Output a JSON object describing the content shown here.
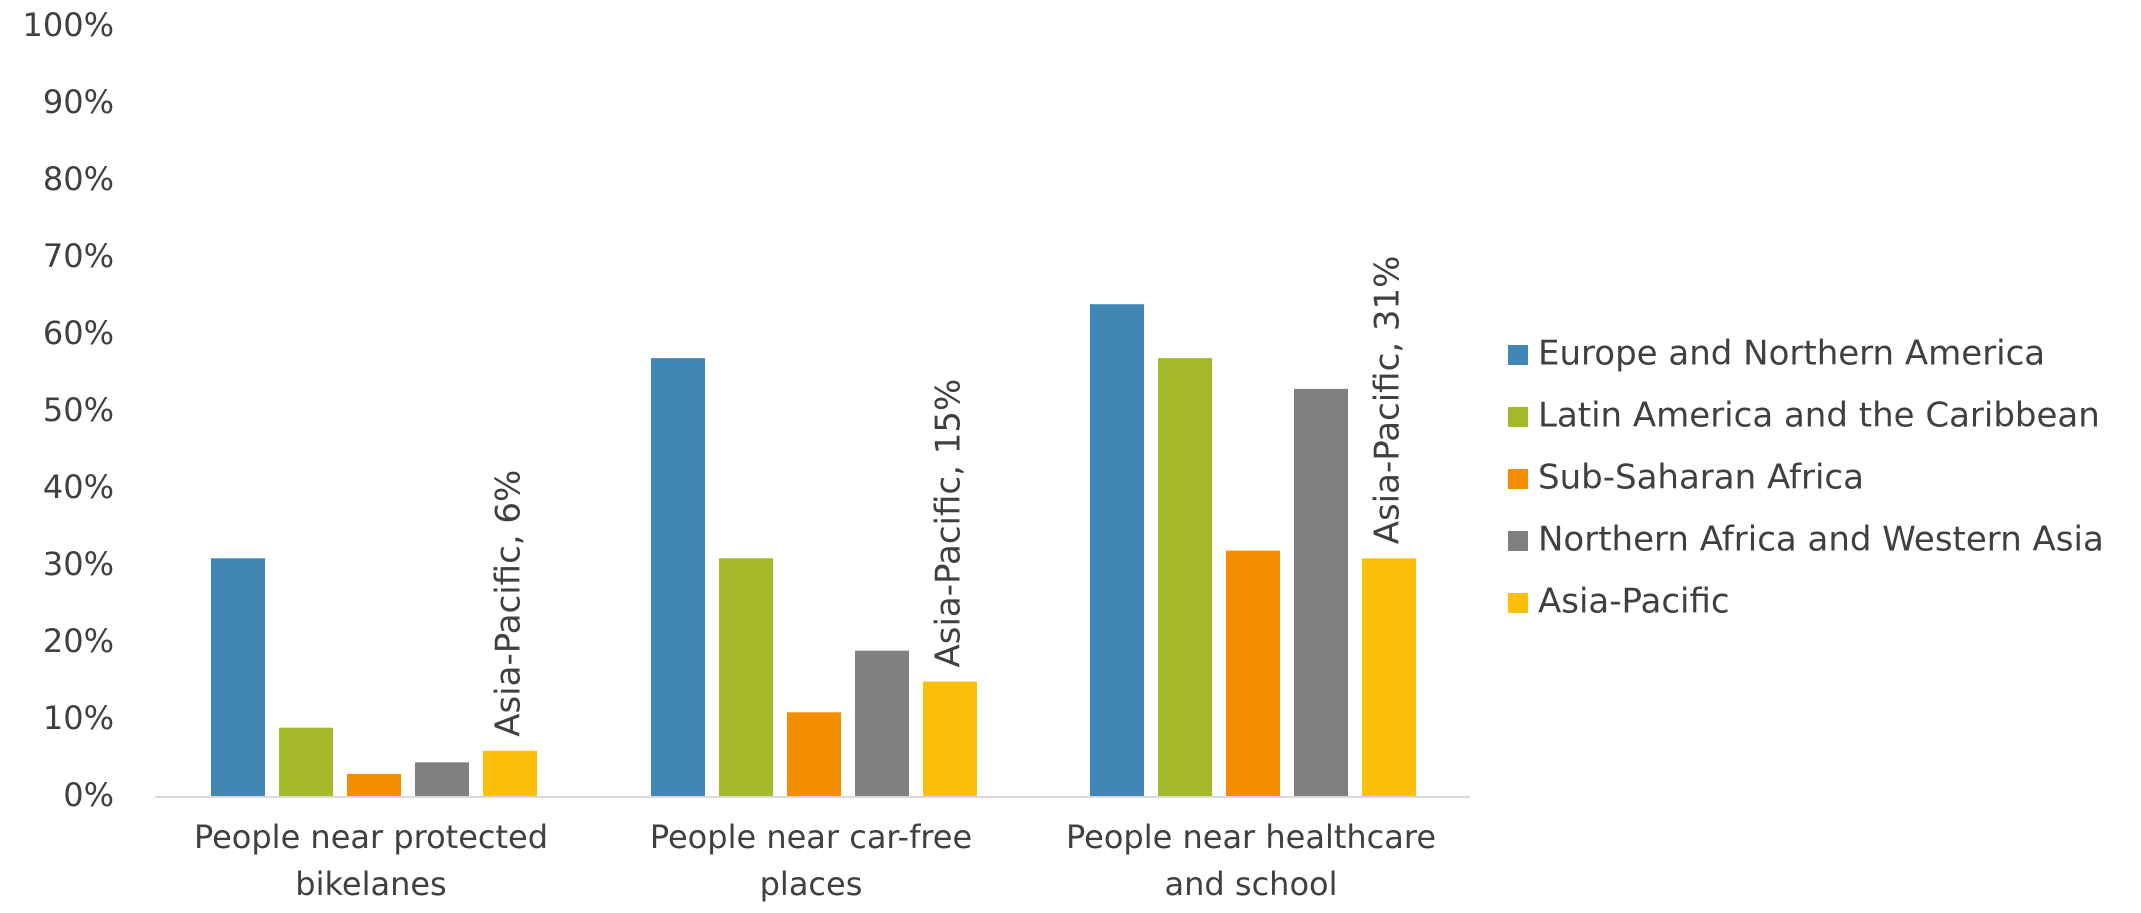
{
  "chart_data": {
    "type": "bar",
    "categories": [
      [
        "People near protected",
        "bikelanes"
      ],
      [
        "People near car-free",
        "places"
      ],
      [
        "People near healthcare",
        "and school"
      ]
    ],
    "y_ticks": [
      "0%",
      "10%",
      "20%",
      "30%",
      "40%",
      "50%",
      "60%",
      "70%",
      "80%",
      "90%",
      "100%"
    ],
    "ylim": [
      0,
      100
    ],
    "unit": "%",
    "grid": false,
    "legend_position": "right",
    "series": [
      {
        "name": "Europe and Northern America",
        "color": "#4187b5",
        "values": [
          31,
          57,
          64
        ]
      },
      {
        "name": "Latin America and the Caribbean",
        "color": "#a5b92a",
        "values": [
          9,
          31,
          57
        ]
      },
      {
        "name": "Sub-Saharan Africa",
        "color": "#f28e00",
        "values": [
          3,
          11,
          32
        ]
      },
      {
        "name": "Northern Africa and Western Asia",
        "color": "#808080",
        "values": [
          4.5,
          19,
          53
        ]
      },
      {
        "name": "Asia-Pacific",
        "color": "#fcc00b",
        "values": [
          6,
          15,
          31
        ]
      }
    ],
    "data_labels": [
      {
        "series": 4,
        "category": 0,
        "text": "Asia-Pacific, 6%"
      },
      {
        "series": 4,
        "category": 1,
        "text": "Asia-Pacific, 15%"
      },
      {
        "series": 4,
        "category": 2,
        "text": "Asia-Pacific, 31%"
      }
    ]
  }
}
